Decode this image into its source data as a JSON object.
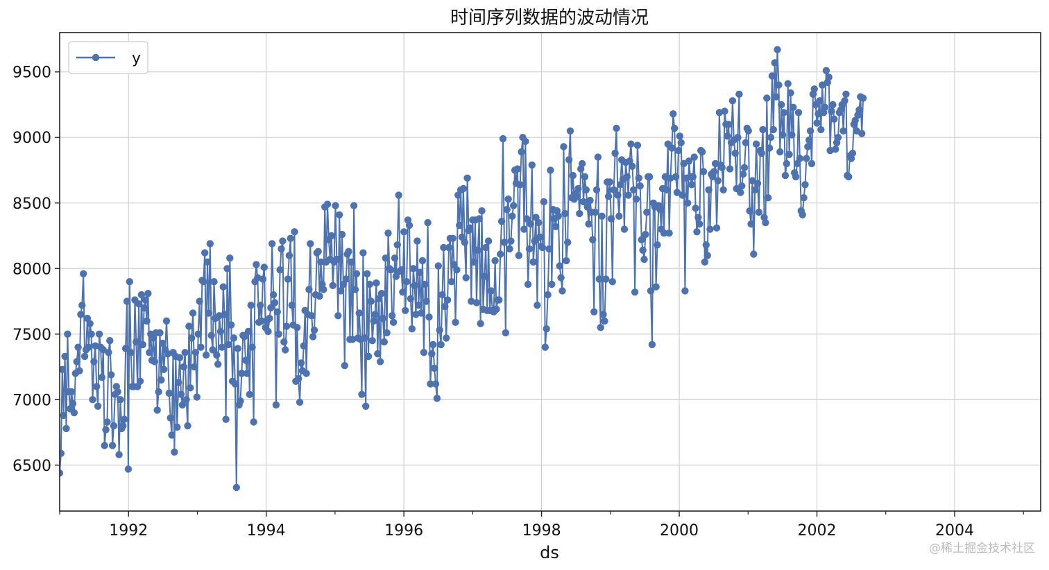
{
  "watermark": "@稀土掘金技术社区",
  "chart_data": {
    "type": "line",
    "title": "时间序列数据的波动情况",
    "xlabel": "ds",
    "ylabel": "",
    "x_start": "1991-01",
    "x_frequency": "weekly",
    "xlim": [
      "1991-01",
      "2005-04"
    ],
    "ylim": [
      6150,
      9800
    ],
    "grid": true,
    "legend_position": "top-left",
    "x_ticks": [
      "1992",
      "1994",
      "1996",
      "1998",
      "2000",
      "2002",
      "2004"
    ],
    "y_ticks": [
      "6500",
      "7000",
      "7500",
      "8000",
      "8500",
      "9000",
      "9500"
    ],
    "series": [
      {
        "name": "y",
        "color": "#4c72b0",
        "marker": "circle",
        "values": [
          6440,
          6590,
          7230,
          6880,
          7330,
          6780,
          7500,
          7060,
          6930,
          7060,
          6970,
          6900,
          7200,
          7290,
          7400,
          7220,
          7650,
          7720,
          7960,
          7330,
          7380,
          7620,
          7400,
          7580,
          7500,
          7000,
          7290,
          7410,
          7100,
          6950,
          7500,
          7400,
          7170,
          7380,
          6650,
          6770,
          6830,
          7360,
          7450,
          7190,
          6650,
          6800,
          7040,
          7100,
          7060,
          6580,
          7000,
          6780,
          6800,
          6850,
          7390,
          7750,
          6470,
          7900,
          7360,
          7100,
          7100,
          7760,
          7440,
          7100,
          7730,
          7140,
          7800,
          7420,
          7700,
          7760,
          7600,
          7810,
          7360,
          7500,
          7300,
          7470,
          7290,
          7510,
          6920,
          7060,
          7510,
          7150,
          7430,
          7230,
          7380,
          7600,
          7350,
          7050,
          6860,
          6730,
          7360,
          6600,
          7330,
          6790,
          7130,
          7320,
          7040,
          6960,
          7250,
          7360,
          7000,
          6800,
          7560,
          7090,
          7470,
          7660,
          7250,
          7360,
          7020,
          7500,
          7750,
          7400,
          7910,
          7900,
          8120,
          7340,
          8050,
          7660,
          8190,
          7490,
          7380,
          7900,
          7620,
          7340,
          7270,
          7640,
          7520,
          7400,
          7860,
          7650,
          6850,
          8000,
          7420,
          8080,
          7570,
          7140,
          7470,
          7120,
          6330,
          7390,
          6960,
          6990,
          7200,
          7490,
          7480,
          7300,
          7200,
          7520,
          7040,
          7720,
          7400,
          6830,
          7900,
          8030,
          7930,
          7590,
          7720,
          7600,
          7920,
          8010,
          7550,
          7600,
          7520,
          7620,
          7700,
          8190,
          7800,
          7740,
          6960,
          7670,
          7500,
          7990,
          8150,
          8210,
          7440,
          7380,
          7560,
          7920,
          8100,
          8230,
          7720,
          7570,
          8280,
          7140,
          7550,
          7160,
          6980,
          7280,
          7220,
          7410,
          7680,
          7200,
          7650,
          7840,
          8190,
          7640,
          7480,
          7530,
          7800,
          8120,
          8130,
          7790,
          8050,
          7880,
          7840,
          8470,
          8050,
          8490,
          8220,
          8070,
          8250,
          7870,
          8050,
          8480,
          8070,
          7640,
          8410,
          7830,
          8260,
          7880,
          7260,
          7920,
          8110,
          8130,
          7460,
          8050,
          7460,
          8480,
          7840,
          7960,
          7470,
          7660,
          7460,
          7040,
          8120,
          7470,
          6950,
          7960,
          7330,
          7880,
          7750,
          7450,
          7600,
          7650,
          7890,
          7350,
          7770,
          7290,
          7810,
          7620,
          7440,
          8080,
          7510,
          8270,
          8000,
          7990,
          7640,
          7590,
          8080,
          7940,
          8180,
          8560,
          7980,
          7990,
          7820,
          8280,
          7680,
          7900,
          8370,
          8330,
          7770,
          7540,
          8000,
          7870,
          7650,
          8210,
          7720,
          7970,
          7660,
          8060,
          7360,
          7880,
          7750,
          8350,
          7630,
          7120,
          7350,
          7420,
          7240,
          7120,
          7010,
          8020,
          7530,
          7420,
          7800,
          8160,
          7710,
          7470,
          7760,
          8160,
          8230,
          7900,
          8230,
          8030,
          7590,
          7990,
          8560,
          8330,
          8600,
          8240,
          8610,
          8200,
          7930,
          8690,
          8290,
          8310,
          7750,
          8370,
          8050,
          8370,
          7740,
          8140,
          8380,
          7580,
          8440,
          7690,
          7940,
          8160,
          7680,
          8210,
          7680,
          7830,
          7680,
          7670,
          8060,
          7690,
          7760,
          7760,
          8110,
          8360,
          8990,
          8200,
          7510,
          8450,
          8530,
          8150,
          8210,
          8400,
          8480,
          8750,
          8650,
          8760,
          8100,
          8640,
          8890,
          9000,
          8300,
          8970,
          8380,
          7880,
          8150,
          8340,
          8790,
          8050,
          8210,
          8390,
          7720,
          8350,
          8240,
          8170,
          8160,
          8510,
          7400,
          7540,
          7800,
          8150,
          8750,
          7880,
          8450,
          8380,
          8320,
          8440,
          8400,
          8020,
          7930,
          7830,
          8930,
          8420,
          8060,
          8200,
          8830,
          9050,
          8540,
          8710,
          8530,
          8570,
          8550,
          8610,
          8420,
          8760,
          8800,
          8510,
          8700,
          8600,
          8470,
          8340,
          8520,
          8430,
          8220,
          7670,
          8430,
          8600,
          8850,
          7920,
          7550,
          8400,
          7650,
          7600,
          7920,
          8660,
          8550,
          8660,
          8380,
          7900,
          8600,
          8880,
          9070,
          8560,
          8400,
          8640,
          8830,
          8680,
          8300,
          8810,
          8700,
          8560,
          8820,
          8950,
          8780,
          8600,
          7820,
          8530,
          8940,
          8690,
          8630,
          8220,
          8140,
          8070,
          8260,
          8430,
          8700,
          8700,
          7830,
          7420,
          8500,
          8470,
          7860,
          8180,
          8480,
          8450,
          8300,
          8610,
          8270,
          8700,
          8600,
          8950,
          8270,
          8690,
          8920,
          9180,
          9070,
          8700,
          8580,
          8900,
          9010,
          8960,
          8560,
          8800,
          7830,
          8690,
          8500,
          8820,
          8700,
          8640,
          8700,
          8850,
          8460,
          8280,
          8390,
          8340,
          8900,
          8890,
          8740,
          8050,
          8180,
          8100,
          8600,
          8300,
          8720,
          8700,
          8740,
          8800,
          8310,
          8670,
          9190,
          8790,
          8770,
          8600,
          9200,
          9100,
          9010,
          9100,
          8760,
          8960,
          9280,
          8980,
          8880,
          8610,
          9000,
          9330,
          8580,
          8630,
          8720,
          8770,
          8960,
          9070,
          9050,
          8440,
          8340,
          8670,
          8110,
          8600,
          8950,
          8650,
          8430,
          8900,
          8880,
          9060,
          8390,
          8350,
          9300,
          8540,
          8920,
          9000,
          9470,
          9060,
          9570,
          9310,
          9670,
          9400,
          8890,
          9250,
          9020,
          9190,
          8710,
          8800,
          9410,
          8870,
          9340,
          9020,
          9230,
          8730,
          8700,
          8800,
          9190,
          8840,
          8440,
          8410,
          8540,
          8640,
          8840,
          8930,
          8980,
          9050,
          8800,
          9330,
          9370,
          9250,
          9110,
          9180,
          9280,
          9060,
          9400,
          9190,
          9230,
          9510,
          9420,
          9460,
          8900,
          9200,
          9250,
          9140,
          8910,
          8960,
          9000,
          9190,
          9210,
          9250,
          9050,
          9280,
          9330,
          8710,
          8700,
          8860,
          8840,
          8880,
          9100,
          9130,
          9050,
          9170,
          9210,
          9310,
          9030,
          9300
        ]
      }
    ]
  }
}
